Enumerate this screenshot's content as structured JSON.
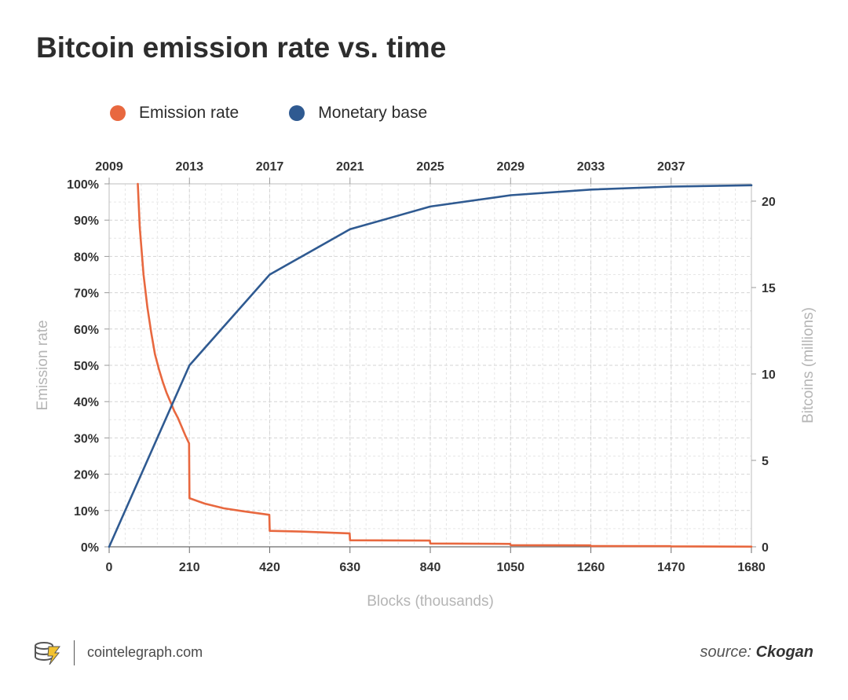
{
  "title": "Bitcoin emission rate vs. time",
  "legend": [
    {
      "label": "Emission rate",
      "color": "#e8683f"
    },
    {
      "label": "Monetary base",
      "color": "#2f5a91"
    }
  ],
  "footer": {
    "logo_icon": "cointelegraph-logo-icon",
    "site": "cointelegraph.com",
    "source_prefix": "source: ",
    "source_name": "Ckogan"
  },
  "chart_data": {
    "type": "line",
    "xlabel": "Blocks (thousands)",
    "ylabel_left": "Emission rate",
    "ylabel_right": "Bitcoins (millions)",
    "x_ticks": [
      0,
      210,
      420,
      630,
      840,
      1050,
      1260,
      1470,
      1680
    ],
    "x_range": [
      0,
      1680
    ],
    "top_axis_ticks": [
      {
        "label": "2009",
        "block": 0
      },
      {
        "label": "2013",
        "block": 210
      },
      {
        "label": "2017",
        "block": 420
      },
      {
        "label": "2021",
        "block": 630
      },
      {
        "label": "2025",
        "block": 840
      },
      {
        "label": "2029",
        "block": 1050
      },
      {
        "label": "2033",
        "block": 1260
      },
      {
        "label": "2037",
        "block": 1470
      }
    ],
    "y_left_ticks": [
      "0%",
      "10%",
      "20%",
      "30%",
      "40%",
      "50%",
      "60%",
      "70%",
      "80%",
      "90%",
      "100%"
    ],
    "y_left_range": [
      0,
      100
    ],
    "y_right_ticks": [
      0,
      5,
      10,
      15,
      20
    ],
    "y_right_range": [
      0,
      21
    ],
    "grid": true,
    "legend_position": "top-left",
    "series": [
      {
        "name": "Emission rate",
        "color": "#e8683f",
        "axis": "left",
        "points": [
          [
            75,
            100
          ],
          [
            80,
            88
          ],
          [
            90,
            75
          ],
          [
            100,
            66
          ],
          [
            110,
            59
          ],
          [
            120,
            53
          ],
          [
            130,
            49
          ],
          [
            140,
            45.5
          ],
          [
            150,
            42.5
          ],
          [
            160,
            40
          ],
          [
            170,
            37.5
          ],
          [
            180,
            35.5
          ],
          [
            190,
            33
          ],
          [
            200,
            30.5
          ],
          [
            209,
            28.5
          ],
          [
            210,
            13.4
          ],
          [
            250,
            11.9
          ],
          [
            300,
            10.6
          ],
          [
            350,
            9.8
          ],
          [
            419,
            8.8
          ],
          [
            420,
            4.4
          ],
          [
            500,
            4.2
          ],
          [
            629,
            3.7
          ],
          [
            630,
            1.8
          ],
          [
            839,
            1.7
          ],
          [
            840,
            0.9
          ],
          [
            1049,
            0.8
          ],
          [
            1050,
            0.45
          ],
          [
            1259,
            0.4
          ],
          [
            1260,
            0.2
          ],
          [
            1469,
            0.18
          ],
          [
            1470,
            0.1
          ],
          [
            1680,
            0.05
          ]
        ]
      },
      {
        "name": "Monetary base",
        "color": "#2f5a91",
        "axis": "right",
        "points": [
          [
            0,
            0
          ],
          [
            210,
            10.5
          ],
          [
            420,
            15.75
          ],
          [
            630,
            18.375
          ],
          [
            840,
            19.6875
          ],
          [
            1050,
            20.34
          ],
          [
            1260,
            20.67
          ],
          [
            1470,
            20.84
          ],
          [
            1680,
            20.92
          ]
        ]
      }
    ]
  }
}
